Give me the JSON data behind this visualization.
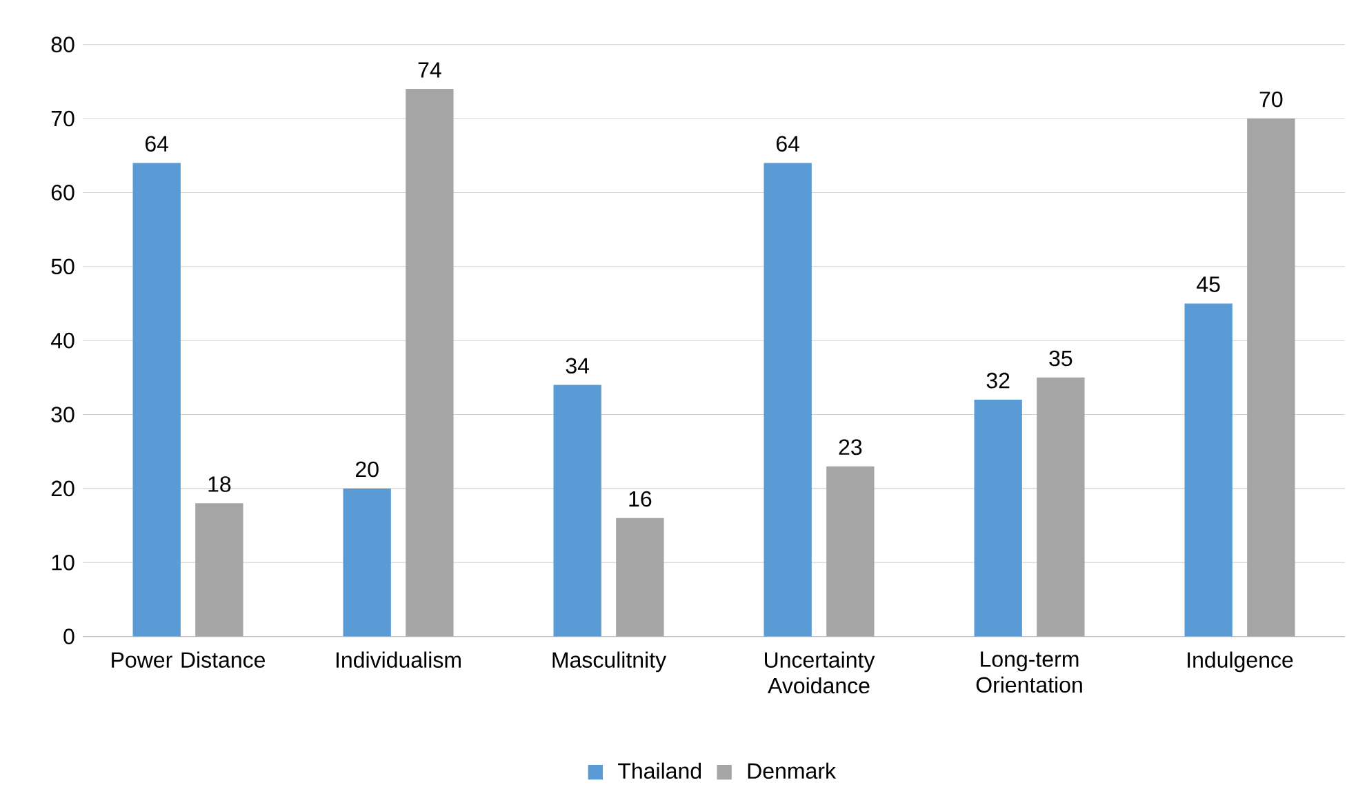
{
  "chart_data": {
    "type": "bar",
    "categories": [
      "Power Distance",
      "Individualism",
      "Masculitnity",
      "Uncertainty Avoidance",
      "Long-term Orientation",
      "Indulgence"
    ],
    "series": [
      {
        "name": "Thailand",
        "color": "#5b9bd5",
        "values": [
          64,
          20,
          34,
          64,
          32,
          45
        ]
      },
      {
        "name": "Denmark",
        "color": "#a5a5a5",
        "values": [
          18,
          74,
          16,
          23,
          35,
          70
        ]
      }
    ],
    "ylim": [
      0,
      80
    ],
    "yticks": [
      0,
      10,
      20,
      30,
      40,
      50,
      60,
      70,
      80
    ],
    "grid": "y",
    "legend": "bottom",
    "data_labels": true
  }
}
